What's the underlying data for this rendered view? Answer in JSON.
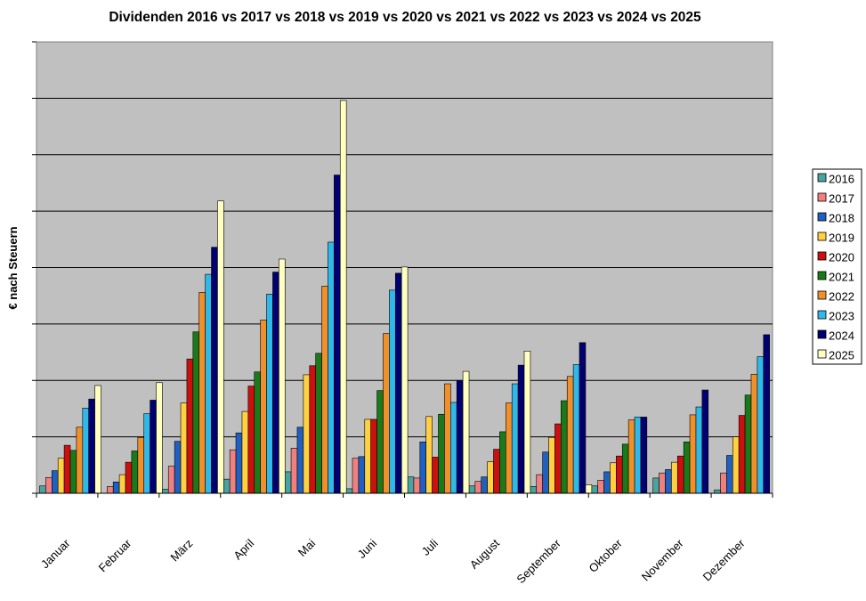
{
  "chart_data": {
    "type": "bar",
    "title": "Dividenden 2016 vs 2017 vs 2018 vs 2019 vs 2020 vs 2021 vs 2022 vs 2023 vs 2024 vs 2025",
    "xlabel": "",
    "ylabel": "€ nach Steuern",
    "ylim": [
      0,
      8
    ],
    "y_tick_labels_shown": false,
    "grid": true,
    "legend_position": "right",
    "categories": [
      "Januar",
      "Februar",
      "März",
      "April",
      "Mai",
      "Juni",
      "Juli",
      "August",
      "September",
      "Oktober",
      "November",
      "Dezember"
    ],
    "series": [
      {
        "name": "2016",
        "color": "#4aa3a3",
        "values": [
          0.13,
          0.0,
          0.07,
          0.25,
          0.38,
          0.08,
          0.29,
          0.13,
          0.12,
          0.13,
          0.27,
          0.06
        ]
      },
      {
        "name": "2017",
        "color": "#f08080",
        "values": [
          0.28,
          0.12,
          0.48,
          0.77,
          0.8,
          0.62,
          0.27,
          0.21,
          0.33,
          0.23,
          0.36,
          0.36
        ]
      },
      {
        "name": "2018",
        "color": "#2060c0",
        "values": [
          0.4,
          0.2,
          0.92,
          1.07,
          1.17,
          0.65,
          0.91,
          0.29,
          0.73,
          0.38,
          0.42,
          0.67
        ]
      },
      {
        "name": "2019",
        "color": "#ffd040",
        "values": [
          0.62,
          0.33,
          1.6,
          1.45,
          2.1,
          1.31,
          1.36,
          0.56,
          0.99,
          0.54,
          0.55,
          1.0
        ]
      },
      {
        "name": "2020",
        "color": "#cc1010",
        "values": [
          0.85,
          0.55,
          2.38,
          1.9,
          2.26,
          1.31,
          0.64,
          0.78,
          1.23,
          0.66,
          0.66,
          1.38
        ]
      },
      {
        "name": "2021",
        "color": "#1a7a1a",
        "values": [
          0.76,
          0.75,
          2.86,
          2.15,
          2.48,
          1.82,
          1.4,
          1.09,
          1.64,
          0.87,
          0.91,
          1.74
        ]
      },
      {
        "name": "2022",
        "color": "#f0902a",
        "values": [
          1.17,
          0.99,
          3.56,
          3.07,
          3.67,
          2.83,
          1.94,
          1.6,
          2.07,
          1.3,
          1.39,
          2.11
        ]
      },
      {
        "name": "2023",
        "color": "#30b8e8",
        "values": [
          1.51,
          1.41,
          3.88,
          3.53,
          4.45,
          3.6,
          1.61,
          1.94,
          2.28,
          1.35,
          1.53,
          2.42
        ]
      },
      {
        "name": "2024",
        "color": "#000070",
        "values": [
          1.67,
          1.65,
          4.36,
          3.92,
          5.64,
          3.9,
          2.0,
          2.27,
          2.67,
          1.35,
          1.83,
          2.81
        ]
      },
      {
        "name": "2025",
        "color": "#ffffc0",
        "values": [
          1.91,
          1.96,
          5.18,
          4.15,
          6.96,
          4.01,
          2.16,
          2.52,
          0.15,
          0,
          0,
          0
        ]
      }
    ]
  }
}
